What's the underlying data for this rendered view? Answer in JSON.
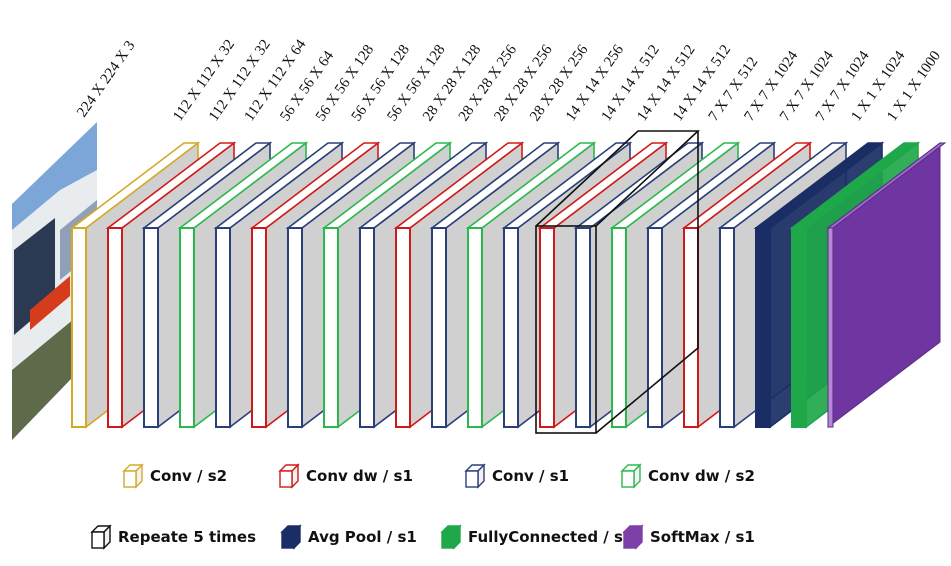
{
  "colors": {
    "conv_s2": "#d4a92a",
    "conv_dw_s1": "#d01a1a",
    "conv_s1": "#2b3f7a",
    "conv_dw_s2": "#2db84d",
    "repeat": "#111111",
    "avg_pool": "#1a2d64",
    "fully_connected": "#1ea84a",
    "softmax": "#7d3fa8",
    "face": "#d0d0d0"
  },
  "input_image": {
    "label": "224 X 224 X 3"
  },
  "layers": [
    {
      "kind": "conv_s2",
      "label": "112 X 112 X 32"
    },
    {
      "kind": "conv_dw_s1",
      "label": "112 X 112 X 32"
    },
    {
      "kind": "conv_s1",
      "label": "112 X 112 X 64"
    },
    {
      "kind": "conv_dw_s2",
      "label": "56 X 56 X 64"
    },
    {
      "kind": "conv_s1",
      "label": "56 X 56 X 128"
    },
    {
      "kind": "conv_dw_s1",
      "label": "56 X 56 X 128"
    },
    {
      "kind": "conv_s1",
      "label": "56 X 56 X 128"
    },
    {
      "kind": "conv_dw_s2",
      "label": "28 X 28 X 128"
    },
    {
      "kind": "conv_s1",
      "label": "28 X 28 X 256"
    },
    {
      "kind": "conv_dw_s1",
      "label": "28 X 28 X 256"
    },
    {
      "kind": "conv_s1",
      "label": "28 X 28 X 256"
    },
    {
      "kind": "conv_dw_s2",
      "label": "14 X 14 X 256"
    },
    {
      "kind": "conv_s1",
      "label": "14 X 14 X 512"
    },
    {
      "kind": "conv_dw_s1",
      "label": "14 X 14 X 512"
    },
    {
      "kind": "conv_s1",
      "label": "14 X 14 X 512"
    },
    {
      "kind": "conv_dw_s2",
      "label": "7 X 7 X 512"
    },
    {
      "kind": "conv_s1",
      "label": "7 X 7 X 1024"
    },
    {
      "kind": "conv_dw_s1",
      "label": "7 X 7 X 1024"
    },
    {
      "kind": "conv_s1",
      "label": "7 X 7 X 1024"
    },
    {
      "kind": "avg_pool",
      "label": "1 X 1 X 1024"
    },
    {
      "kind": "fully_connected",
      "label": "1 X 1 X 1000"
    },
    {
      "kind": "softmax",
      "label": ""
    }
  ],
  "repeat_marker_after": 13,
  "legend": [
    {
      "kind": "conv_s2",
      "label": "Conv / s2"
    },
    {
      "kind": "conv_dw_s1",
      "label": "Conv dw / s1"
    },
    {
      "kind": "conv_s1",
      "label": "Conv / s1"
    },
    {
      "kind": "conv_dw_s2",
      "label": "Conv dw / s2"
    },
    {
      "kind": "repeat",
      "label": "Repeate 5 times"
    },
    {
      "kind": "avg_pool",
      "label": "Avg Pool / s1"
    },
    {
      "kind": "fully_connected",
      "label": "FullyConnected / s1"
    },
    {
      "kind": "softmax",
      "label": "SoftMax / s1"
    }
  ]
}
